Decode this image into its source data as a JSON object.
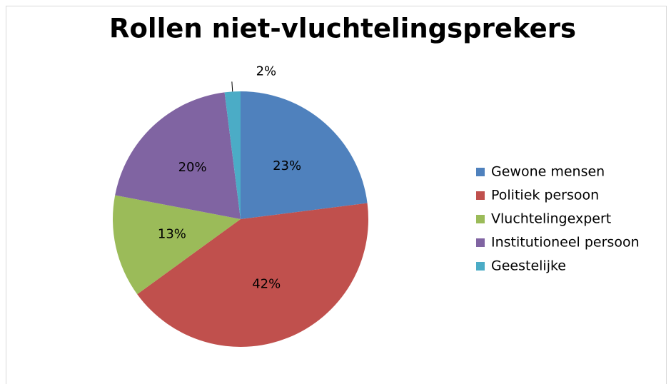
{
  "chart_data": {
    "type": "pie",
    "title": "Rollen niet-vluchtelingsprekers",
    "categories": [
      "Gewone mensen",
      "Politiek persoon",
      "Vluchtelingexpert",
      "Institutioneel persoon",
      "Geestelijke"
    ],
    "values": [
      23,
      42,
      13,
      20,
      2
    ],
    "value_labels": [
      "23%",
      "42%",
      "13%",
      "20%",
      "2%"
    ],
    "colors": [
      "#4f81bd",
      "#c0504d",
      "#9bbb59",
      "#8064a2",
      "#4bacc6"
    ],
    "legend": "right"
  }
}
